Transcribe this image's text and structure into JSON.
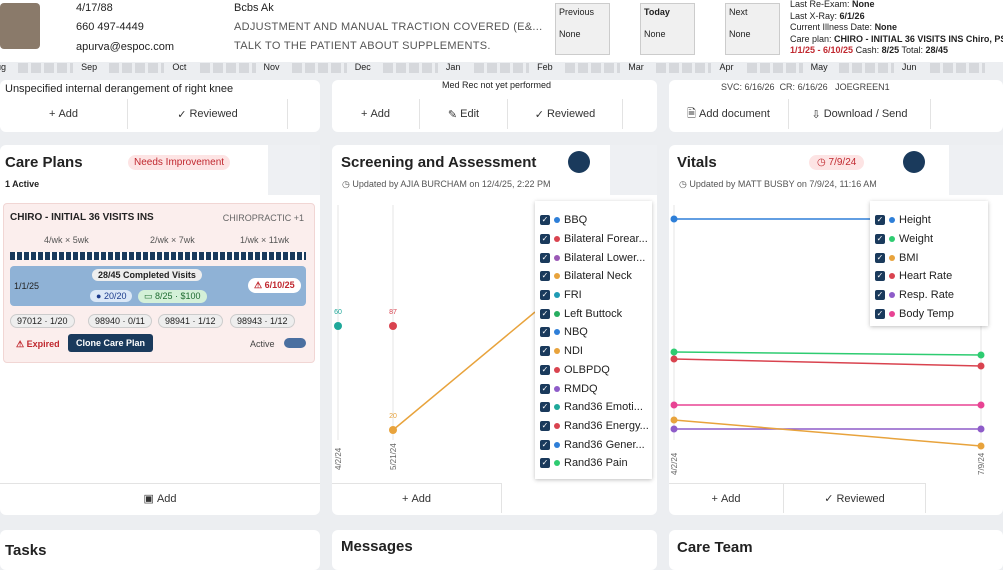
{
  "header": {
    "dob": "4/17/88",
    "phone": "660 497-4449",
    "email": "apurva@espoc.com",
    "insurance": "Bcbs Ak",
    "notes": [
      "ADJUSTMENT AND MANUAL TRACTION COVERED (E&...",
      "TALK TO THE PATIENT ABOUT SUPPLEMENTS."
    ],
    "visits": [
      {
        "label": "Previous",
        "value": "None"
      },
      {
        "label": "Today",
        "value": "None"
      },
      {
        "label": "Next",
        "value": "None"
      }
    ],
    "info": {
      "last_re_exam": {
        "label": "Last Re-Exam:",
        "value": "None"
      },
      "last_xray": {
        "label": "Last X-Ray:",
        "value": "6/1/26"
      },
      "illness": {
        "label": "Current Illness Date:",
        "value": "None"
      },
      "care_plan": {
        "label": "Care plan:",
        "value": "CHIRO - INITIAL 36 VISITS INS",
        "extra": "Chiro, PSY"
      },
      "range": "1/1/25 - 6/10/25",
      "cash_label": "Cash:",
      "cash": "8/25",
      "total_label": "Total:",
      "total": "28/45"
    }
  },
  "timeline": {
    "months": [
      "Aug",
      "Sep",
      "Oct",
      "Nov",
      "Dec",
      "Jan",
      "Feb",
      "Mar",
      "Apr",
      "May",
      "Jun"
    ]
  },
  "top_row": {
    "diagnosis": "Unspecified internal derangement of right knee",
    "med_rec": "Med Rec not yet performed",
    "svc": "SVC: 6/16/26",
    "cr": "CR: 6/16/26",
    "provider": "JOEGREEN1",
    "buttons": {
      "add": "Add",
      "reviewed": "Reviewed",
      "edit": "Edit",
      "add_document": "Add document",
      "download": "Download",
      "send": "Send"
    }
  },
  "care_plans": {
    "title": "Care Plans",
    "badge": "Needs Improvement",
    "count": "1 Active",
    "card": {
      "name": "CHIRO - INITIAL 36 VISITS INS",
      "type": "CHIROPRACTIC +1",
      "phases": [
        "4/wk × 5wk",
        "2/wk × 7wk",
        "1/wk × 11wk"
      ],
      "completed": "28/45 Completed Visits",
      "start": "1/1/25",
      "ins": "20/20",
      "cash": "8/25 · $100",
      "end": "6/10/25",
      "codes": [
        "97012 · 1/20",
        "98940 · 0/11",
        "98941 · 1/12",
        "98943 · 1/12"
      ],
      "status": "Expired",
      "clone": "Clone Care Plan",
      "active": "Active"
    },
    "add": "Add"
  },
  "screening": {
    "title": "Screening and Assessment",
    "updated": "Updated by AJIA BURCHAM on 12/4/25, 2:22 PM",
    "dates": [
      "4/2/24",
      "5/21/24"
    ],
    "point_labels": [
      "60",
      "87",
      "20"
    ],
    "legend": [
      {
        "name": "BBQ",
        "color": "#2e7fd8"
      },
      {
        "name": "Bilateral Forear...",
        "color": "#d9434f"
      },
      {
        "name": "Bilateral Lower...",
        "color": "#9b59b6"
      },
      {
        "name": "Bilateral Neck",
        "color": "#e8a33c"
      },
      {
        "name": "FRI",
        "color": "#1f9bb4"
      },
      {
        "name": "Left Buttock",
        "color": "#27ae60"
      },
      {
        "name": "NBQ",
        "color": "#2e7fd8"
      },
      {
        "name": "NDI",
        "color": "#e8a33c"
      },
      {
        "name": "OLBPDQ",
        "color": "#d9434f"
      },
      {
        "name": "RMDQ",
        "color": "#8e5cc9"
      },
      {
        "name": "Rand36 Emoti...",
        "color": "#1fa89a"
      },
      {
        "name": "Rand36 Energy...",
        "color": "#d9434f"
      },
      {
        "name": "Rand36 Gener...",
        "color": "#2e7fd8"
      },
      {
        "name": "Rand36 Pain",
        "color": "#2ecc71"
      }
    ],
    "add": "Add"
  },
  "vitals": {
    "title": "Vitals",
    "date_badge": "7/9/24",
    "updated": "Updated by MATT BUSBY on 7/9/24, 11:16 AM",
    "dates": [
      "4/2/24",
      "7/9/24"
    ],
    "legend": [
      {
        "name": "Height",
        "color": "#2e7fd8"
      },
      {
        "name": "Weight",
        "color": "#2ecc71"
      },
      {
        "name": "BMI",
        "color": "#e8a33c"
      },
      {
        "name": "Heart Rate",
        "color": "#d9434f"
      },
      {
        "name": "Resp. Rate",
        "color": "#8e5cc9"
      },
      {
        "name": "Body Temp",
        "color": "#e84393"
      }
    ],
    "add": "Add",
    "reviewed": "Reviewed"
  },
  "bottom": {
    "tasks": "Tasks",
    "messages": "Messages",
    "care_team": "Care Team"
  }
}
